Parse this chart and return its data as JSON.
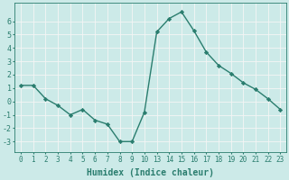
{
  "x_positions": [
    0,
    1,
    2,
    3,
    4,
    5,
    6,
    7,
    8,
    9,
    10,
    11,
    12,
    13,
    14,
    15,
    16,
    17,
    18,
    19,
    20,
    21
  ],
  "y": [
    1.2,
    1.2,
    0.2,
    -0.3,
    -1.0,
    -0.6,
    -1.4,
    -1.7,
    -3.0,
    -3.0,
    -0.8,
    5.2,
    6.2,
    6.7,
    5.3,
    3.7,
    2.7,
    2.1,
    1.4,
    0.9,
    0.2,
    -0.6
  ],
  "xtick_labels": [
    "0",
    "1",
    "2",
    "3",
    "4",
    "5",
    "6",
    "7",
    "8",
    "9",
    "10",
    "13",
    "14",
    "15",
    "16",
    "17",
    "18",
    "19",
    "20",
    "21",
    "22",
    "23"
  ],
  "yticks": [
    -3,
    -2,
    -1,
    0,
    1,
    2,
    3,
    4,
    5,
    6
  ],
  "ylim": [
    -3.8,
    7.4
  ],
  "xlim": [
    -0.5,
    21.5
  ],
  "xlabel": "Humidex (Indice chaleur)",
  "line_color": "#2a7d6e",
  "marker": "D",
  "marker_size": 2.2,
  "bg_color": "#cceae8",
  "grid_color": "#f5f5f5",
  "tick_color": "#2a7d6e",
  "label_color": "#2a7d6e",
  "xlabel_fontsize": 7,
  "ytick_fontsize": 6,
  "xtick_fontsize": 5.5
}
